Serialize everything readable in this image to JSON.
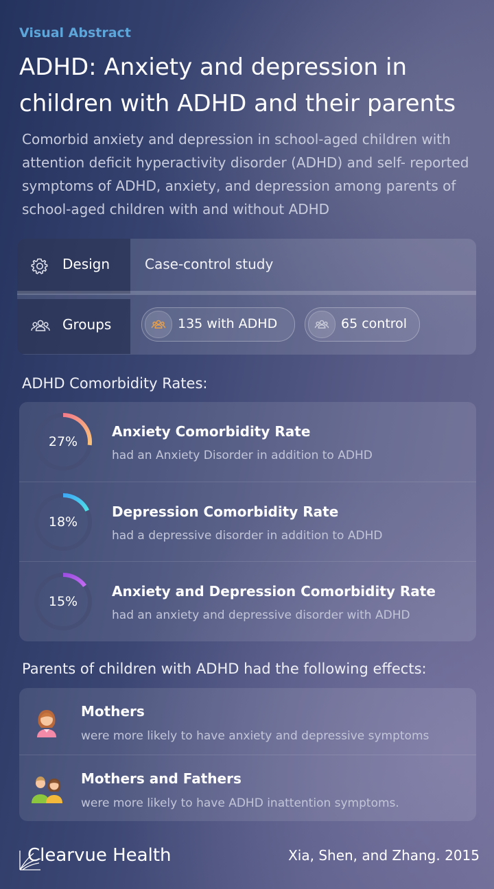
{
  "header": {
    "eyebrow": "Visual Abstract",
    "title": "ADHD: Anxiety and depression in children with ADHD and their parents",
    "subtitle": "Comorbid anxiety and depression in school-aged children with attention deficit hyperactivity disorder (ADHD) and self- reported symptoms of ADHD, anxiety, and depression among parents of school-aged children with and without ADHD"
  },
  "study": {
    "design_label": "Design",
    "design_value": "Case-control study",
    "groups_label": "Groups",
    "groups": [
      {
        "label": "135 with ADHD",
        "icon": "people-icon",
        "color": "#e8a04a"
      },
      {
        "label": "65 control",
        "icon": "people-icon",
        "color": "#c9ccd8"
      }
    ]
  },
  "comorbidity": {
    "heading": "ADHD Comorbidity Rates:",
    "items": [
      {
        "percent": 27,
        "percent_label": "27%",
        "title": "Anxiety Comorbidity Rate",
        "desc": "had an Anxiety Disorder in addition to ADHD",
        "color_start": "#f47c8a",
        "color_end": "#f9c27a"
      },
      {
        "percent": 18,
        "percent_label": "18%",
        "title": "Depression Comorbidity Rate",
        "desc": "had a depressive disorder in addition to ADHD",
        "color_start": "#3fa9f5",
        "color_end": "#4fe0e8"
      },
      {
        "percent": 15,
        "percent_label": "15%",
        "title": "Anxiety and Depression Comorbidity Rate",
        "desc": "had an anxiety and depressive disorder with ADHD",
        "color_start": "#9b4fe0",
        "color_end": "#c46cf2"
      }
    ]
  },
  "parents": {
    "heading": "Parents of children with ADHD had the following effects:",
    "items": [
      {
        "icon": "mother-icon",
        "title": "Mothers",
        "desc": "were more likely to have anxiety and depressive symptoms"
      },
      {
        "icon": "mother-and-father-icon",
        "title": "Mothers and Fathers",
        "desc": "were more likely to have ADHD inattention symptoms."
      }
    ]
  },
  "footer": {
    "brand": "Clearvue Health",
    "citation": "Xia, Shen, and Zhang. 2015"
  }
}
